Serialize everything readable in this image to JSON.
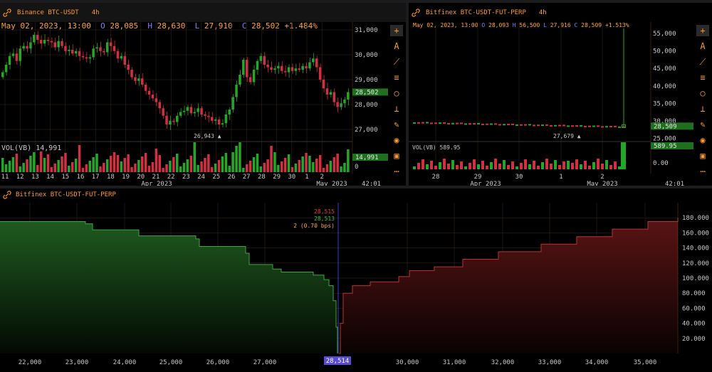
{
  "left_chart": {
    "symbol": "Binance BTC-USDT",
    "timeframe": "4h",
    "date": "May 02, 2023, 13:00",
    "o_label": "O",
    "o": "28,085",
    "h_label": "H",
    "h": "28,630",
    "l_label": "L",
    "l": "27,910",
    "c_label": "C",
    "c": "28,502",
    "change": "+1.484%",
    "price_axis": [
      "31,000",
      "30,000",
      "29,000",
      "28,000",
      "27,000"
    ],
    "last_price": "28,502",
    "low_marker": "26,943",
    "vol_label": "VOL(VB)",
    "vol_value": "14,991",
    "vol_badge": "14,991",
    "vol_zero": "0",
    "x_ticks": [
      "11",
      "12",
      "13",
      "14",
      "15",
      "16",
      "17",
      "18",
      "19",
      "20",
      "21",
      "22",
      "23",
      "24",
      "25",
      "26",
      "27",
      "28",
      "29",
      "30",
      "1",
      "2"
    ],
    "x_month_left": "Apr 2023",
    "x_month_right": "May 2023",
    "timer": "42:01"
  },
  "right_chart": {
    "symbol": "Bitfinex BTC-USDT-FUT-PERP",
    "timeframe": "4h",
    "date": "May 02, 2023, 13:00",
    "o_label": "O",
    "o": "28,093",
    "h_label": "H",
    "h": "56,500",
    "l_label": "L",
    "l": "27,916",
    "c_label": "C",
    "c": "28,509",
    "change": "+1.513%",
    "price_axis": [
      "55,000",
      "50,000",
      "45,000",
      "40,000",
      "35,000",
      "30,000",
      "25,000"
    ],
    "last_price": "28,509",
    "low_marker": "27,679",
    "vol_label": "VOL(VB)",
    "vol_value": "589.95",
    "vol_badge": "589.95",
    "vol_zero": "0.00",
    "x_ticks": [
      "28",
      "29",
      "30",
      "1",
      "2"
    ],
    "x_month_left": "Apr 2023",
    "x_month_right": "May 2023",
    "timer": "42:01"
  },
  "depth_chart": {
    "symbol": "Bitfinex BTC-USDT-FUT-PERP",
    "ask_price": "28,515",
    "bid_price": "28,513",
    "spread": "2 (0.70 bps)",
    "mid_badge": "28,514",
    "x_ticks": [
      "22,000",
      "23,000",
      "24,000",
      "25,000",
      "26,000",
      "27,000",
      "30,000",
      "31,000",
      "32,000",
      "33,000",
      "34,000",
      "35,000"
    ],
    "y_ticks": [
      "180.000",
      "160.000",
      "140.000",
      "120.000",
      "100.000",
      "80.000",
      "60.000",
      "40.000",
      "20.000"
    ]
  },
  "toolbar_icons": [
    "plus-icon",
    "text-icon",
    "line-icon",
    "lines-icon",
    "circle-icon",
    "measure-icon",
    "brush-icon",
    "eye-icon",
    "trash-icon",
    "more-icon"
  ],
  "colors": {
    "up": "#26a626",
    "down": "#d03040",
    "accent": "#ff9a2a",
    "blue": "#7f7fff",
    "grid": "#3a2a1a"
  }
}
